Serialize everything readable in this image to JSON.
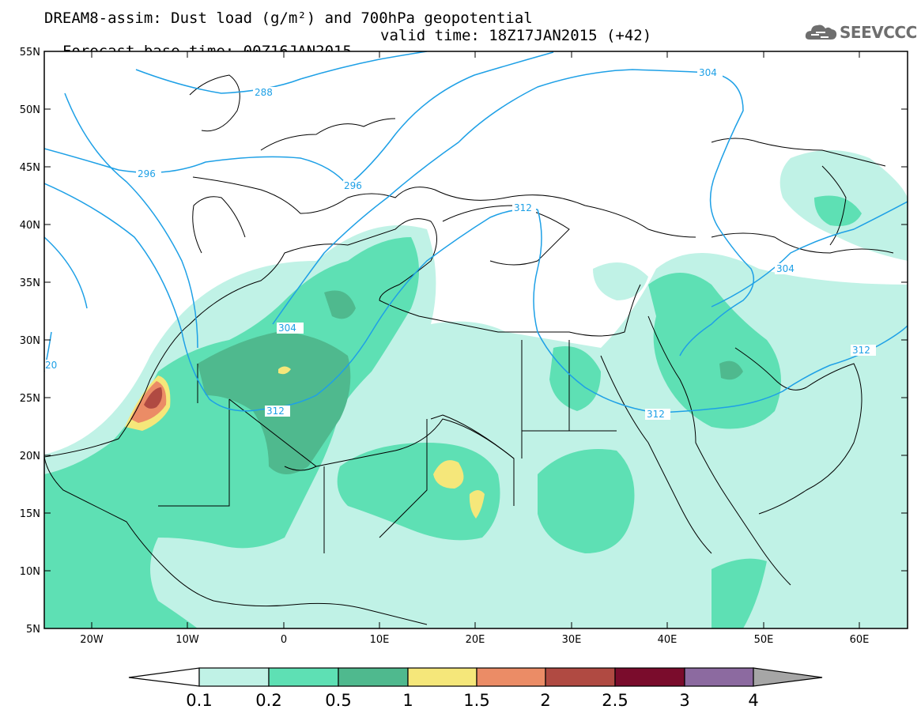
{
  "header": {
    "title_line1": "DREAM8-assim: Dust load (g/m²) and 700hPa geopotential",
    "title_line2_base": "Forecast base time: 00Z16JAN2015",
    "title_line2_valid": "valid time: 18Z17JAN2015 (+42)"
  },
  "logo": {
    "text": "SEEVCCC",
    "icon": "cloud-icon"
  },
  "map": {
    "lat_labels": [
      "55N",
      "50N",
      "45N",
      "40N",
      "35N",
      "30N",
      "25N",
      "20N",
      "15N",
      "10N",
      "5N"
    ],
    "lon_labels": [
      "20W",
      "10W",
      "0",
      "10E",
      "20E",
      "30E",
      "40E",
      "50E",
      "60E"
    ],
    "contour_labels": [
      "288",
      "296",
      "296",
      "304",
      "304",
      "304",
      "312",
      "312",
      "312",
      "312",
      "20"
    ]
  },
  "colorbar": {
    "labels": [
      "0.1",
      "0.2",
      "0.5",
      "1",
      "1.5",
      "2",
      "2.5",
      "3",
      "4"
    ],
    "colors": [
      "#c0f2e6",
      "#5ee0b4",
      "#4fb98e",
      "#f5e77a",
      "#eb8c66",
      "#b04a42",
      "#7a0c2c",
      "#8c6aa0"
    ],
    "under_color": "#ffffff",
    "over_color": "#a6a6a6"
  },
  "colors": {
    "contour": "#1ea0e6",
    "coast": "#000000"
  }
}
